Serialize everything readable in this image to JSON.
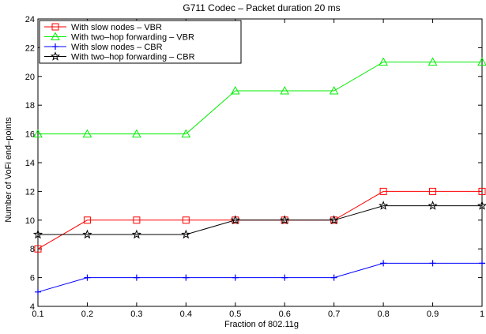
{
  "chart_data": {
    "type": "line",
    "title": "G711 Codec – Packet duration 20 ms",
    "xlabel": "Fraction of 802.11g",
    "ylabel": "Number of VoFi end–points",
    "x": [
      0.1,
      0.2,
      0.3,
      0.4,
      0.5,
      0.6,
      0.7,
      0.8,
      0.9,
      1.0
    ],
    "xlim": [
      0.1,
      1.0
    ],
    "ylim": [
      4,
      24
    ],
    "xticks": [
      0.1,
      0.2,
      0.3,
      0.4,
      0.5,
      0.6,
      0.7,
      0.8,
      0.9,
      1.0
    ],
    "xtick_labels": [
      "0.1",
      "0.2",
      "0.3",
      "0.4",
      "0.5",
      "0.6",
      "0.7",
      "0.8",
      "0.9",
      "1"
    ],
    "yticks": [
      4,
      6,
      8,
      10,
      12,
      14,
      16,
      18,
      20,
      22,
      24
    ],
    "ytick_labels": [
      "4",
      "6",
      "8",
      "10",
      "12",
      "14",
      "16",
      "18",
      "20",
      "22",
      "24"
    ],
    "grid": false,
    "legend_position": "top-left",
    "series": [
      {
        "name": "With slow nodes – VBR",
        "color": "#ff0000",
        "marker": "square",
        "values": [
          8,
          10,
          10,
          10,
          10,
          10,
          10,
          12,
          12,
          12
        ]
      },
      {
        "name": "With two–hop forwarding – VBR",
        "color": "#00ee00",
        "marker": "triangle",
        "values": [
          16,
          16,
          16,
          16,
          19,
          19,
          19,
          21,
          21,
          21
        ]
      },
      {
        "name": "With slow nodes – CBR",
        "color": "#0000ff",
        "marker": "plus",
        "values": [
          5,
          6,
          6,
          6,
          6,
          6,
          6,
          7,
          7,
          7
        ]
      },
      {
        "name": "With two–hop forwarding – CBR",
        "color": "#000000",
        "marker": "star",
        "values": [
          9,
          9,
          9,
          9,
          10,
          10,
          10,
          11,
          11,
          11
        ]
      }
    ]
  }
}
